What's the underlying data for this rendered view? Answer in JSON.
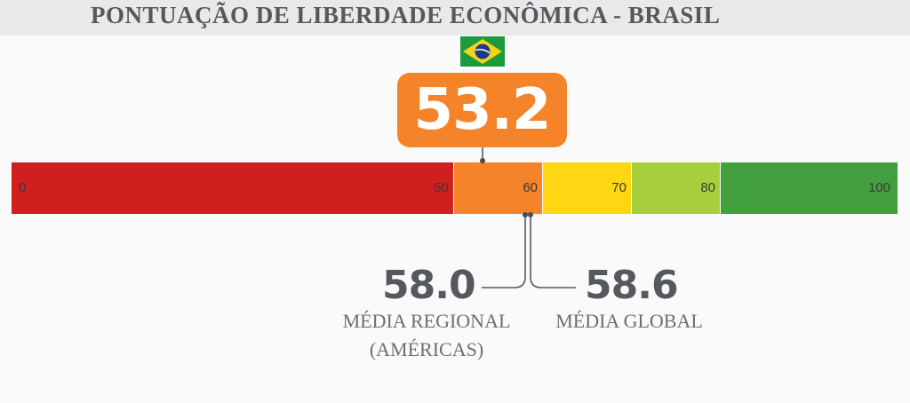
{
  "title": "PONTUAÇÃO DE LIBERDADE ECONÔMICA - BRASIL",
  "flag_icon": "brazil-flag-icon",
  "chart_data": {
    "type": "gauge-bar",
    "country_score": 53.2,
    "range": [
      0,
      100
    ],
    "bands": [
      {
        "from": 0,
        "to": 50,
        "color": "#d01f1f"
      },
      {
        "from": 50,
        "to": 60,
        "color": "#f5832a"
      },
      {
        "from": 60,
        "to": 70,
        "color": "#ffd614"
      },
      {
        "from": 70,
        "to": 80,
        "color": "#a7cf3b"
      },
      {
        "from": 80,
        "to": 100,
        "color": "#42a13e"
      }
    ],
    "tick_labels": [
      "0",
      "50",
      "60",
      "70",
      "80",
      "100"
    ],
    "score_color": "#f5832a",
    "regional": {
      "value": "58.0",
      "label_line1": "MÉDIA REGIONAL",
      "label_line2": "(AMÉRICAS)"
    },
    "global": {
      "value": "58.6",
      "label": "MÉDIA GLOBAL"
    }
  }
}
